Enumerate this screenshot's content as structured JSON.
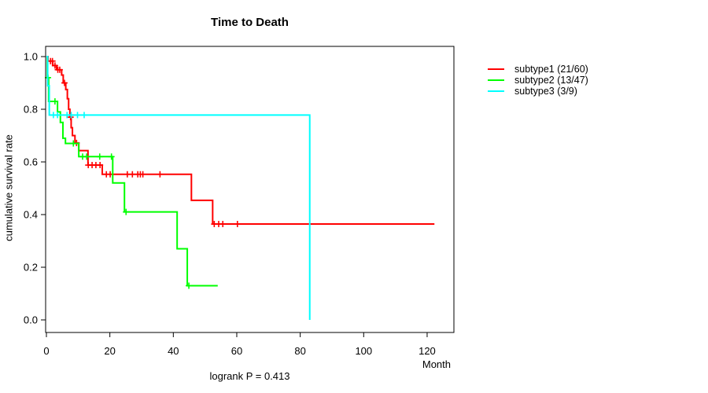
{
  "chart_data": {
    "type": "km_survival_step",
    "title": "Time to Death",
    "xlabel": "Month",
    "ylabel": "cumulative survival rate",
    "footnote": "logrank P = 0.413",
    "grid": false,
    "legend_position": "right-outside",
    "xticks": [
      0,
      20,
      40,
      60,
      80,
      100,
      120
    ],
    "xtick_labels": [
      "0",
      "20",
      "40",
      "60",
      "80",
      "100",
      "120"
    ],
    "yticks": [
      0.0,
      0.2,
      0.4,
      0.6,
      0.8,
      1.0
    ],
    "ytick_labels": [
      "0.0",
      "0.2",
      "0.4",
      "0.6",
      "0.8",
      "1.0"
    ],
    "xlim": [
      0,
      128.5
    ],
    "ylim": [
      0,
      1.0
    ],
    "series": [
      {
        "name": "subtype1",
        "label": "subtype1 (21/60)",
        "events": "21/60",
        "color": "#ff0000",
        "steps": [
          [
            0,
            1.0
          ],
          [
            0.5,
            0.983
          ],
          [
            2,
            0.966
          ],
          [
            3.2,
            0.95
          ],
          [
            4.8,
            0.93
          ],
          [
            5.3,
            0.9
          ],
          [
            6.1,
            0.875
          ],
          [
            6.6,
            0.84
          ],
          [
            7,
            0.8
          ],
          [
            7.4,
            0.77
          ],
          [
            7.8,
            0.73
          ],
          [
            8.2,
            0.7
          ],
          [
            9,
            0.672
          ],
          [
            10.2,
            0.643
          ],
          [
            13.1,
            0.588
          ],
          [
            17.6,
            0.553
          ],
          [
            45.7,
            0.454
          ],
          [
            52.4,
            0.364
          ]
        ],
        "end_time": 122.3,
        "censor_times": [
          1.3,
          1.9,
          2.7,
          3.6,
          4.2,
          5.7,
          7.6,
          9.5,
          13.2,
          14.4,
          15.6,
          16.9,
          18.9,
          20.1,
          25.5,
          27.1,
          28.8,
          29.6,
          30.4,
          35.8,
          52.9,
          54.3,
          55.6,
          60.2
        ]
      },
      {
        "name": "subtype2",
        "label": "subtype2 (13/47)",
        "events": "13/47",
        "color": "#00ff00",
        "steps": [
          [
            0,
            1.0
          ],
          [
            0.3,
            0.92
          ],
          [
            0.7,
            0.83
          ],
          [
            3.5,
            0.79
          ],
          [
            4.4,
            0.75
          ],
          [
            5.2,
            0.69
          ],
          [
            6,
            0.67
          ],
          [
            10.2,
            0.62
          ],
          [
            20.9,
            0.52
          ],
          [
            24.6,
            0.41
          ],
          [
            41.2,
            0.27
          ],
          [
            44.4,
            0.13
          ]
        ],
        "end_time": 54,
        "censor_times": [
          0.5,
          2.7,
          8.5,
          11.4,
          12.7,
          16.8,
          20.5,
          25.1,
          44.9
        ]
      },
      {
        "name": "subtype3",
        "label": "subtype3 (3/9)",
        "events": "3/9",
        "color": "#00ffff",
        "steps": [
          [
            0,
            1.0
          ],
          [
            0.4,
            0.889
          ],
          [
            0.9,
            0.778
          ],
          [
            83,
            0.0
          ]
        ],
        "end_time": 83,
        "censor_times": [
          2.2,
          3.5,
          6.5,
          7.8,
          9.8,
          11.9
        ]
      }
    ]
  }
}
